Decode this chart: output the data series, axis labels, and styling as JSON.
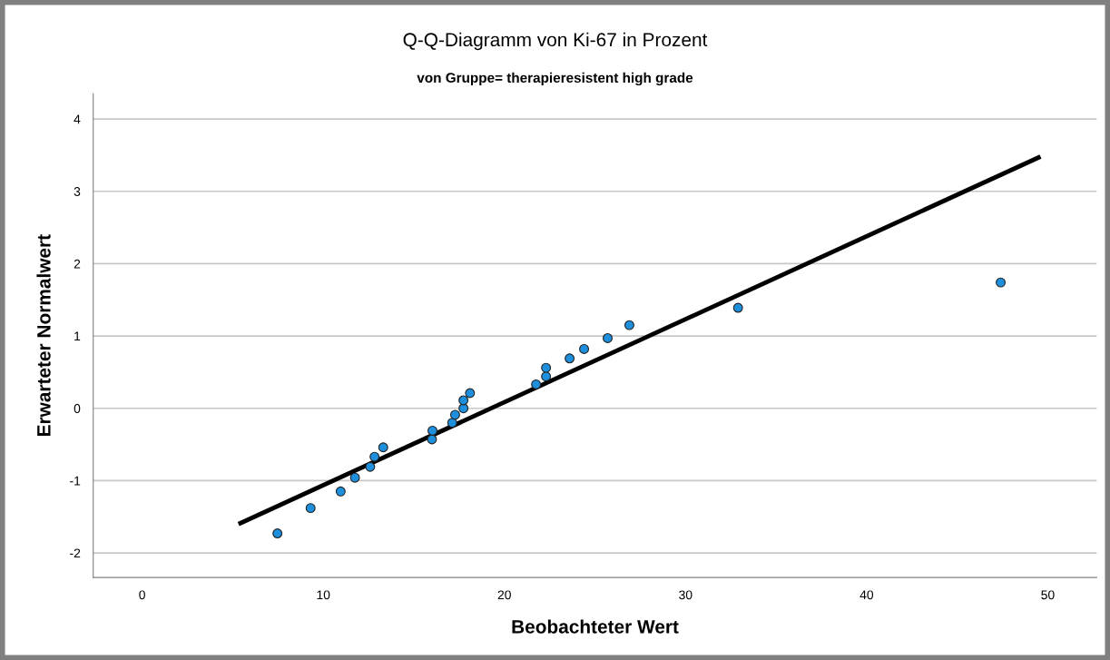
{
  "chart_data": {
    "type": "scatter",
    "title": "Q-Q-Diagramm von Ki-67 in Prozent",
    "subtitle": "von Gruppe= therapieresistent high grade",
    "xlabel": "Beobachteter Wert",
    "ylabel": "Erwarteter Normalwert",
    "xlim": [
      -2.7,
      52.7
    ],
    "ylim": [
      -2.34,
      4.35
    ],
    "xticks": [
      0,
      10,
      20,
      30,
      40,
      50
    ],
    "yticks": [
      -2,
      -1,
      0,
      1,
      2,
      3,
      4
    ],
    "grid": "y",
    "series": [
      {
        "marker": "circle",
        "color": "#1e8fdc",
        "x": [
          7.47,
          9.3,
          10.96,
          11.75,
          12.59,
          12.83,
          13.31,
          16.0,
          16.03,
          17.12,
          17.28,
          17.74,
          17.74,
          18.1,
          21.75,
          22.3,
          22.3,
          23.6,
          24.4,
          25.7,
          26.9,
          32.9,
          47.4
        ],
        "values": [
          -1.73,
          -1.38,
          -1.15,
          -0.96,
          -0.81,
          -0.67,
          -0.54,
          -0.43,
          -0.31,
          -0.2,
          -0.09,
          0.0,
          0.11,
          0.21,
          0.33,
          0.44,
          0.56,
          0.69,
          0.82,
          0.97,
          1.15,
          1.39,
          1.74
        ]
      },
      {
        "type": "line",
        "marker": "none",
        "color": "#000000",
        "x": [
          5.32,
          49.6
        ],
        "values": [
          -1.6,
          3.48
        ]
      }
    ]
  }
}
